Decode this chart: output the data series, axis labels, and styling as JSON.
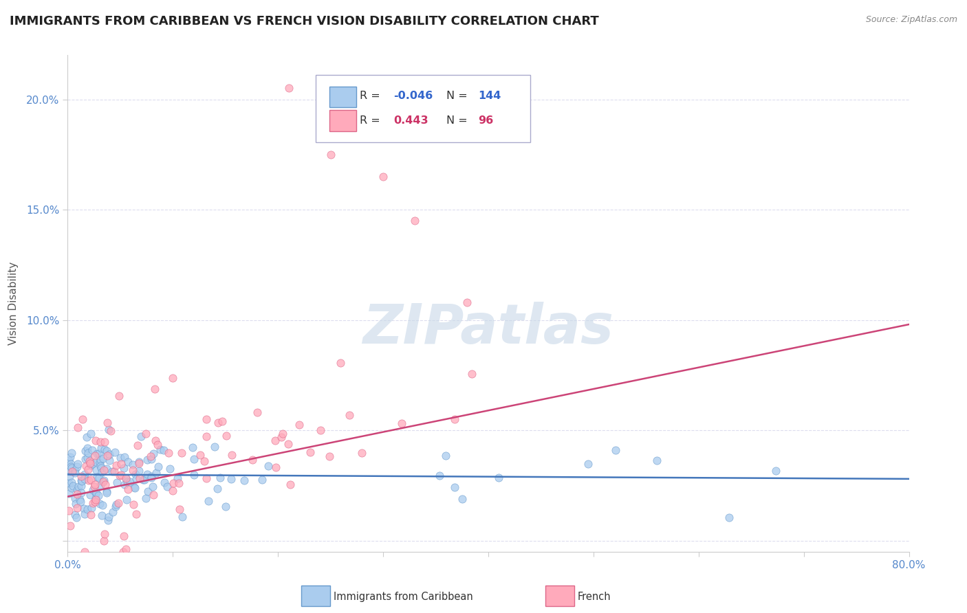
{
  "title": "IMMIGRANTS FROM CARIBBEAN VS FRENCH VISION DISABILITY CORRELATION CHART",
  "source": "Source: ZipAtlas.com",
  "ylabel": "Vision Disability",
  "series": [
    {
      "name": "Immigrants from Caribbean",
      "R": -0.046,
      "N": 144,
      "line_color": "#4477bb",
      "fill_color": "#aaccee",
      "edge_color": "#6699cc"
    },
    {
      "name": "French",
      "R": 0.443,
      "N": 96,
      "line_color": "#cc4477",
      "fill_color": "#ffaabb",
      "edge_color": "#dd6688"
    }
  ],
  "xlim": [
    0,
    0.8
  ],
  "ylim": [
    -0.005,
    0.22
  ],
  "yticks": [
    0.0,
    0.05,
    0.1,
    0.15,
    0.2
  ],
  "ytick_labels": [
    "",
    "5.0%",
    "10.0%",
    "15.0%",
    "20.0%"
  ],
  "xticks": [
    0.0,
    0.1,
    0.2,
    0.3,
    0.4,
    0.5,
    0.6,
    0.7,
    0.8
  ],
  "xtick_labels": [
    "0.0%",
    "",
    "",
    "",
    "",
    "",
    "",
    "",
    "80.0%"
  ],
  "watermark": "ZIPatlas",
  "background_color": "#ffffff",
  "grid_color": "#ddddee",
  "title_fontsize": 13,
  "axis_label_fontsize": 11,
  "tick_fontsize": 11,
  "legend_R_color_blue": "#3366cc",
  "legend_R_color_pink": "#cc3366"
}
